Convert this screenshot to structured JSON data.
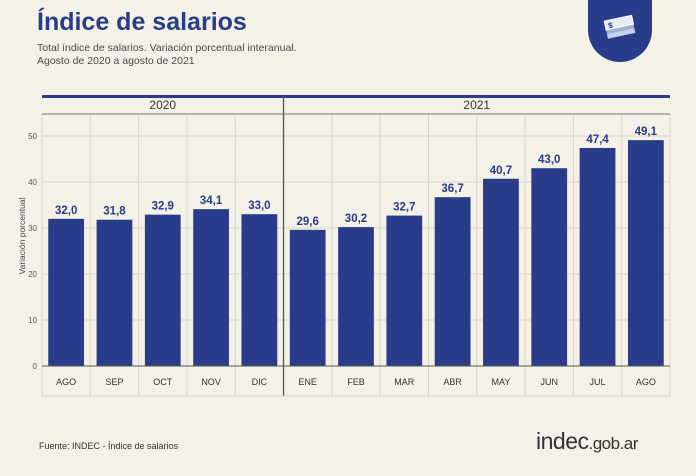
{
  "header": {
    "title": "Índice de salarios",
    "subtitle": "Total índice de salarios. Variación porcentual interanual.",
    "period": "Agosto de 2020 a agosto de 2021"
  },
  "footer": {
    "source": "Fuente: INDEC - Índice de salarios",
    "logo_main": "indec",
    "logo_suffix": ".gob.ar",
    "badge_icon": "money-stack-icon"
  },
  "colors": {
    "bar": "#283c8a",
    "title": "#283c8a",
    "background": "#f4f1e6",
    "grid": "#d9d5c8"
  },
  "chart_data": {
    "type": "bar",
    "title": "",
    "xlabel": "",
    "ylabel": "Variación porcentual",
    "ylim": [
      0,
      50
    ],
    "yticks": [
      0,
      10,
      20,
      30,
      40,
      50
    ],
    "grid": true,
    "groups": [
      {
        "label": "2020",
        "categories": [
          "AGO",
          "SEP",
          "OCT",
          "NOV",
          "DIC"
        ]
      },
      {
        "label": "2021",
        "categories": [
          "ENE",
          "FEB",
          "MAR",
          "ABR",
          "MAY",
          "JUN",
          "JUL",
          "AGO"
        ]
      }
    ],
    "categories": [
      "AGO",
      "SEP",
      "OCT",
      "NOV",
      "DIC",
      "ENE",
      "FEB",
      "MAR",
      "ABR",
      "MAY",
      "JUN",
      "JUL",
      "AGO"
    ],
    "values": [
      32.0,
      31.8,
      32.9,
      34.1,
      33.0,
      29.6,
      30.2,
      32.7,
      36.7,
      40.7,
      43.0,
      47.4,
      49.1
    ],
    "value_labels": [
      "32,0",
      "31,8",
      "32,9",
      "34,1",
      "33,0",
      "29,6",
      "30,2",
      "32,7",
      "36,7",
      "40,7",
      "43,0",
      "47,4",
      "49,1"
    ]
  }
}
